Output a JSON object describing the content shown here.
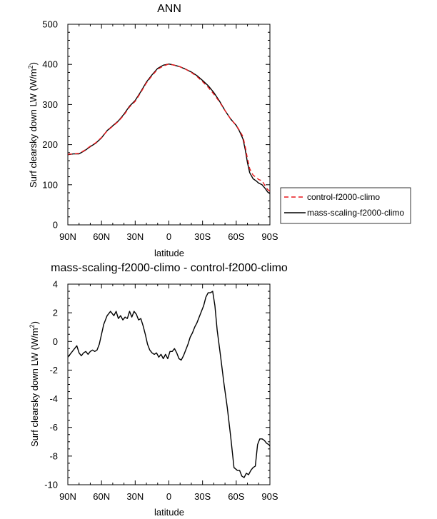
{
  "chart_data": [
    {
      "type": "line",
      "title": "ANN",
      "xlabel": "latitude",
      "ylabel": "Surf clearsky down LW (W/m",
      "ylabel_sup": "2",
      "ylabel_close": ")",
      "xlim": [
        90,
        -90
      ],
      "ylim": [
        0,
        500
      ],
      "xticks": [
        90,
        60,
        30,
        0,
        -30,
        -60,
        -90
      ],
      "xtick_labels": [
        "90N",
        "60N",
        "30N",
        "0",
        "30S",
        "60S",
        "90S"
      ],
      "yticks": [
        0,
        100,
        200,
        300,
        400,
        500
      ],
      "ytick_labels": [
        "0",
        "100",
        "200",
        "300",
        "400",
        "500"
      ],
      "legend": "right",
      "series": [
        {
          "name": "control-f2000-climo",
          "color": "#e8171b",
          "dash": "dashed",
          "x": [
            90,
            85,
            80,
            75,
            70,
            65,
            60,
            55,
            50,
            45,
            40,
            35,
            30,
            25,
            20,
            15,
            10,
            5,
            0,
            -5,
            -10,
            -15,
            -20,
            -25,
            -30,
            -35,
            -40,
            -45,
            -50,
            -55,
            -60,
            -63,
            -66,
            -68,
            -70,
            -72,
            -75,
            -78,
            -80,
            -83,
            -86,
            -88,
            -90
          ],
          "values": [
            176,
            177,
            178,
            186,
            196,
            205,
            218,
            234,
            246,
            258,
            274,
            294,
            308,
            330,
            354,
            372,
            388,
            396,
            401,
            398,
            394,
            388,
            380,
            370,
            357,
            343,
            326,
            307,
            285,
            264,
            248,
            235,
            220,
            195,
            165,
            140,
            124,
            118,
            113,
            110,
            96,
            88,
            84
          ]
        },
        {
          "name": "mass-scaling-f2000-climo",
          "color": "#000000",
          "dash": "solid",
          "x": [
            90,
            85,
            80,
            75,
            70,
            65,
            60,
            55,
            50,
            45,
            40,
            35,
            30,
            25,
            20,
            15,
            10,
            5,
            0,
            -5,
            -10,
            -15,
            -20,
            -25,
            -30,
            -35,
            -40,
            -45,
            -50,
            -55,
            -60,
            -63,
            -66,
            -68,
            -70,
            -72,
            -75,
            -78,
            -80,
            -83,
            -86,
            -88,
            -90
          ],
          "values": [
            175,
            177,
            177,
            185,
            195,
            204,
            217,
            235,
            247,
            259,
            276,
            296,
            310,
            332,
            356,
            374,
            390,
            398,
            401,
            398,
            394,
            388,
            381,
            372,
            360,
            347,
            330,
            309,
            285,
            264,
            248,
            233,
            214,
            188,
            155,
            130,
            115,
            109,
            104,
            100,
            90,
            82,
            78
          ]
        }
      ]
    },
    {
      "type": "line",
      "title": "mass-scaling-f2000-climo - control-f2000-climo",
      "xlabel": "latitude",
      "ylabel": "Surf clearsky down LW (W/m",
      "ylabel_sup": "2",
      "ylabel_close": ")",
      "xlim": [
        90,
        -90
      ],
      "ylim": [
        -10,
        4
      ],
      "xticks": [
        90,
        60,
        30,
        0,
        -30,
        -60,
        -90
      ],
      "xtick_labels": [
        "90N",
        "60N",
        "30N",
        "0",
        "30S",
        "60S",
        "90S"
      ],
      "yticks": [
        -10,
        -8,
        -6,
        -4,
        -2,
        0,
        2,
        4
      ],
      "ytick_labels": [
        "-10",
        "-8",
        "-6",
        "-4",
        "-2",
        "0",
        "2",
        "4"
      ],
      "series": [
        {
          "color": "#000000",
          "dash": "solid",
          "x": [
            90,
            87,
            84,
            82,
            80,
            78,
            76,
            74,
            72,
            70,
            68,
            66,
            64,
            62,
            60,
            58,
            55,
            52,
            49,
            47,
            45,
            43,
            41,
            39,
            37,
            35,
            33,
            31,
            29,
            27,
            25,
            23,
            21,
            19,
            17,
            15,
            13,
            11,
            9,
            7,
            5,
            3,
            1,
            -1,
            -3,
            -5,
            -7,
            -9,
            -11,
            -13,
            -15,
            -17,
            -19,
            -21,
            -23,
            -25,
            -27,
            -29,
            -31,
            -33,
            -35,
            -37,
            -39,
            -41,
            -43,
            -46,
            -49,
            -52,
            -55,
            -58,
            -61,
            -63,
            -65,
            -67,
            -69,
            -71,
            -73,
            -75,
            -77,
            -79,
            -81,
            -83,
            -85,
            -87,
            -89,
            -90
          ],
          "values": [
            -1.1,
            -0.8,
            -0.5,
            -0.3,
            -0.8,
            -1.0,
            -0.8,
            -0.7,
            -0.9,
            -0.7,
            -0.6,
            -0.7,
            -0.6,
            -0.2,
            0.5,
            1.2,
            1.8,
            2.1,
            1.8,
            2.1,
            1.6,
            1.8,
            1.5,
            1.7,
            1.6,
            2.1,
            1.7,
            2.1,
            1.9,
            1.5,
            1.6,
            1.1,
            0.5,
            -0.2,
            -0.6,
            -0.8,
            -0.9,
            -0.8,
            -1.1,
            -0.9,
            -1.2,
            -0.9,
            -1.2,
            -0.7,
            -0.7,
            -0.5,
            -0.8,
            -1.2,
            -1.3,
            -1.0,
            -0.6,
            -0.2,
            0.3,
            0.6,
            1.0,
            1.3,
            1.7,
            2.1,
            2.5,
            3.1,
            3.4,
            3.4,
            3.5,
            2.5,
            0.8,
            -1.0,
            -2.9,
            -4.6,
            -6.6,
            -8.8,
            -9.0,
            -9.0,
            -9.4,
            -9.5,
            -9.2,
            -9.3,
            -9.0,
            -8.8,
            -8.7,
            -7.2,
            -6.8,
            -6.8,
            -6.9,
            -7.1,
            -7.2,
            -7.3
          ]
        }
      ]
    }
  ]
}
